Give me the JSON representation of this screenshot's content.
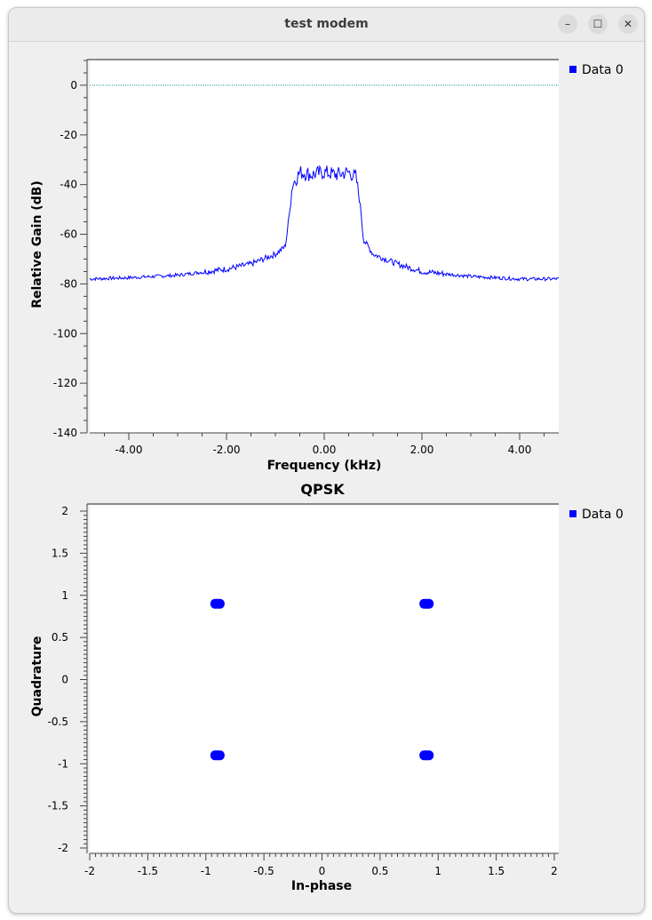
{
  "window": {
    "title": "test modem",
    "controls": {
      "minimize": "–",
      "maximize": "☐",
      "close": "✕"
    }
  },
  "chart_data": [
    {
      "type": "line",
      "title": "",
      "xlabel": "Frequency (kHz)",
      "ylabel": "Relative Gain (dB)",
      "xlim": [
        -4.8,
        4.8
      ],
      "ylim": [
        -140,
        10
      ],
      "xticks": [
        "-4.00",
        "-2.00",
        "0.00",
        "2.00",
        "4.00"
      ],
      "xtick_values": [
        -4,
        -2,
        0,
        2,
        4
      ],
      "yticks": [
        "0",
        "-20",
        "-40",
        "-60",
        "-80",
        "-100",
        "-120",
        "-140"
      ],
      "ytick_values": [
        0,
        -20,
        -40,
        -60,
        -80,
        -100,
        -120,
        -140
      ],
      "reference_line": {
        "y": 0,
        "color": "#008080",
        "style": "dotted"
      },
      "legend": {
        "position": "right",
        "entries": [
          "Data 0"
        ]
      },
      "series": [
        {
          "name": "Data 0",
          "color": "#0000ff",
          "x": [
            -4.8,
            -4.0,
            -3.0,
            -2.0,
            -1.5,
            -1.0,
            -0.8,
            -0.75,
            -0.65,
            -0.5,
            -0.25,
            0.0,
            0.25,
            0.5,
            0.65,
            0.75,
            0.8,
            1.0,
            1.5,
            2.0,
            3.0,
            4.0,
            4.8
          ],
          "y": [
            -78,
            -77.5,
            -76.5,
            -74,
            -72,
            -68,
            -65,
            -58,
            -40,
            -35,
            -36,
            -35,
            -36,
            -35,
            -37,
            -50,
            -62,
            -68,
            -72,
            -75,
            -77,
            -78,
            -78
          ]
        }
      ]
    },
    {
      "type": "scatter",
      "title": "QPSK",
      "xlabel": "In-phase",
      "ylabel": "Quadrature",
      "xlim": [
        -2,
        2
      ],
      "ylim": [
        -2,
        2
      ],
      "xticks": [
        "-2",
        "-1.5",
        "-1",
        "-0.5",
        "0",
        "0.5",
        "1",
        "1.5",
        "2"
      ],
      "xtick_values": [
        -2,
        -1.5,
        -1,
        -0.5,
        0,
        0.5,
        1,
        1.5,
        2
      ],
      "yticks": [
        "2",
        "1.5",
        "1",
        "0.5",
        "0",
        "-0.5",
        "-1",
        "-1.5",
        "-2"
      ],
      "ytick_values": [
        2,
        1.5,
        1,
        0.5,
        0,
        -0.5,
        -1,
        -1.5,
        -2
      ],
      "legend": {
        "position": "right",
        "entries": [
          "Data 0"
        ]
      },
      "series": [
        {
          "name": "Data 0",
          "color": "#0000ff",
          "points": [
            [
              -0.9,
              0.9
            ],
            [
              0.9,
              0.9
            ],
            [
              -0.9,
              -0.9
            ],
            [
              0.9,
              -0.9
            ]
          ]
        }
      ]
    }
  ]
}
